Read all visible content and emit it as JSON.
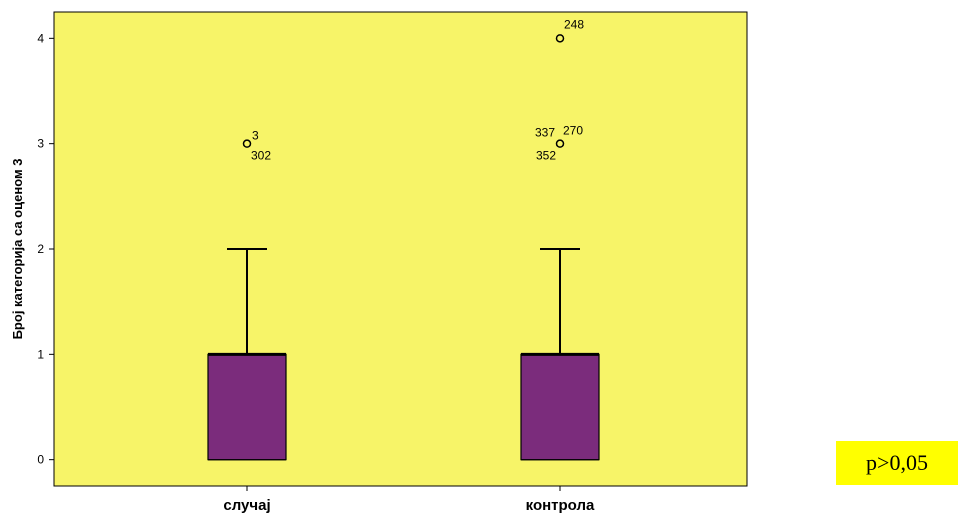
{
  "chart_data": {
    "type": "boxplot",
    "title": "",
    "xlabel": "",
    "ylabel": "Број категорија са оценом 3",
    "ylim": [
      -0.25,
      4.25
    ],
    "yticks": [
      0,
      1,
      2,
      3,
      4
    ],
    "ytick_labels": [
      "0",
      "1",
      "2",
      "3",
      "4"
    ],
    "grid": false,
    "colors": {
      "plot_background": "#f7f468",
      "box_fill": "#7b2c7c",
      "line": "#000000"
    },
    "categories": [
      "случај",
      "контрола"
    ],
    "boxes": [
      {
        "category": "случај",
        "whisker_low": 0,
        "q1": 0,
        "median": 1,
        "q3": 1,
        "whisker_high": 2,
        "outliers": [
          {
            "value": 3,
            "labels": [
              "3",
              "302"
            ]
          }
        ]
      },
      {
        "category": "контрола",
        "whisker_low": 0,
        "q1": 0,
        "median": 1,
        "q3": 1,
        "whisker_high": 2,
        "outliers": [
          {
            "value": 3,
            "labels": [
              "337",
              "270",
              "352"
            ]
          },
          {
            "value": 4,
            "labels": [
              "248"
            ]
          }
        ]
      }
    ]
  },
  "annotation": {
    "text": "p>0,05",
    "background": "#ffff00"
  }
}
